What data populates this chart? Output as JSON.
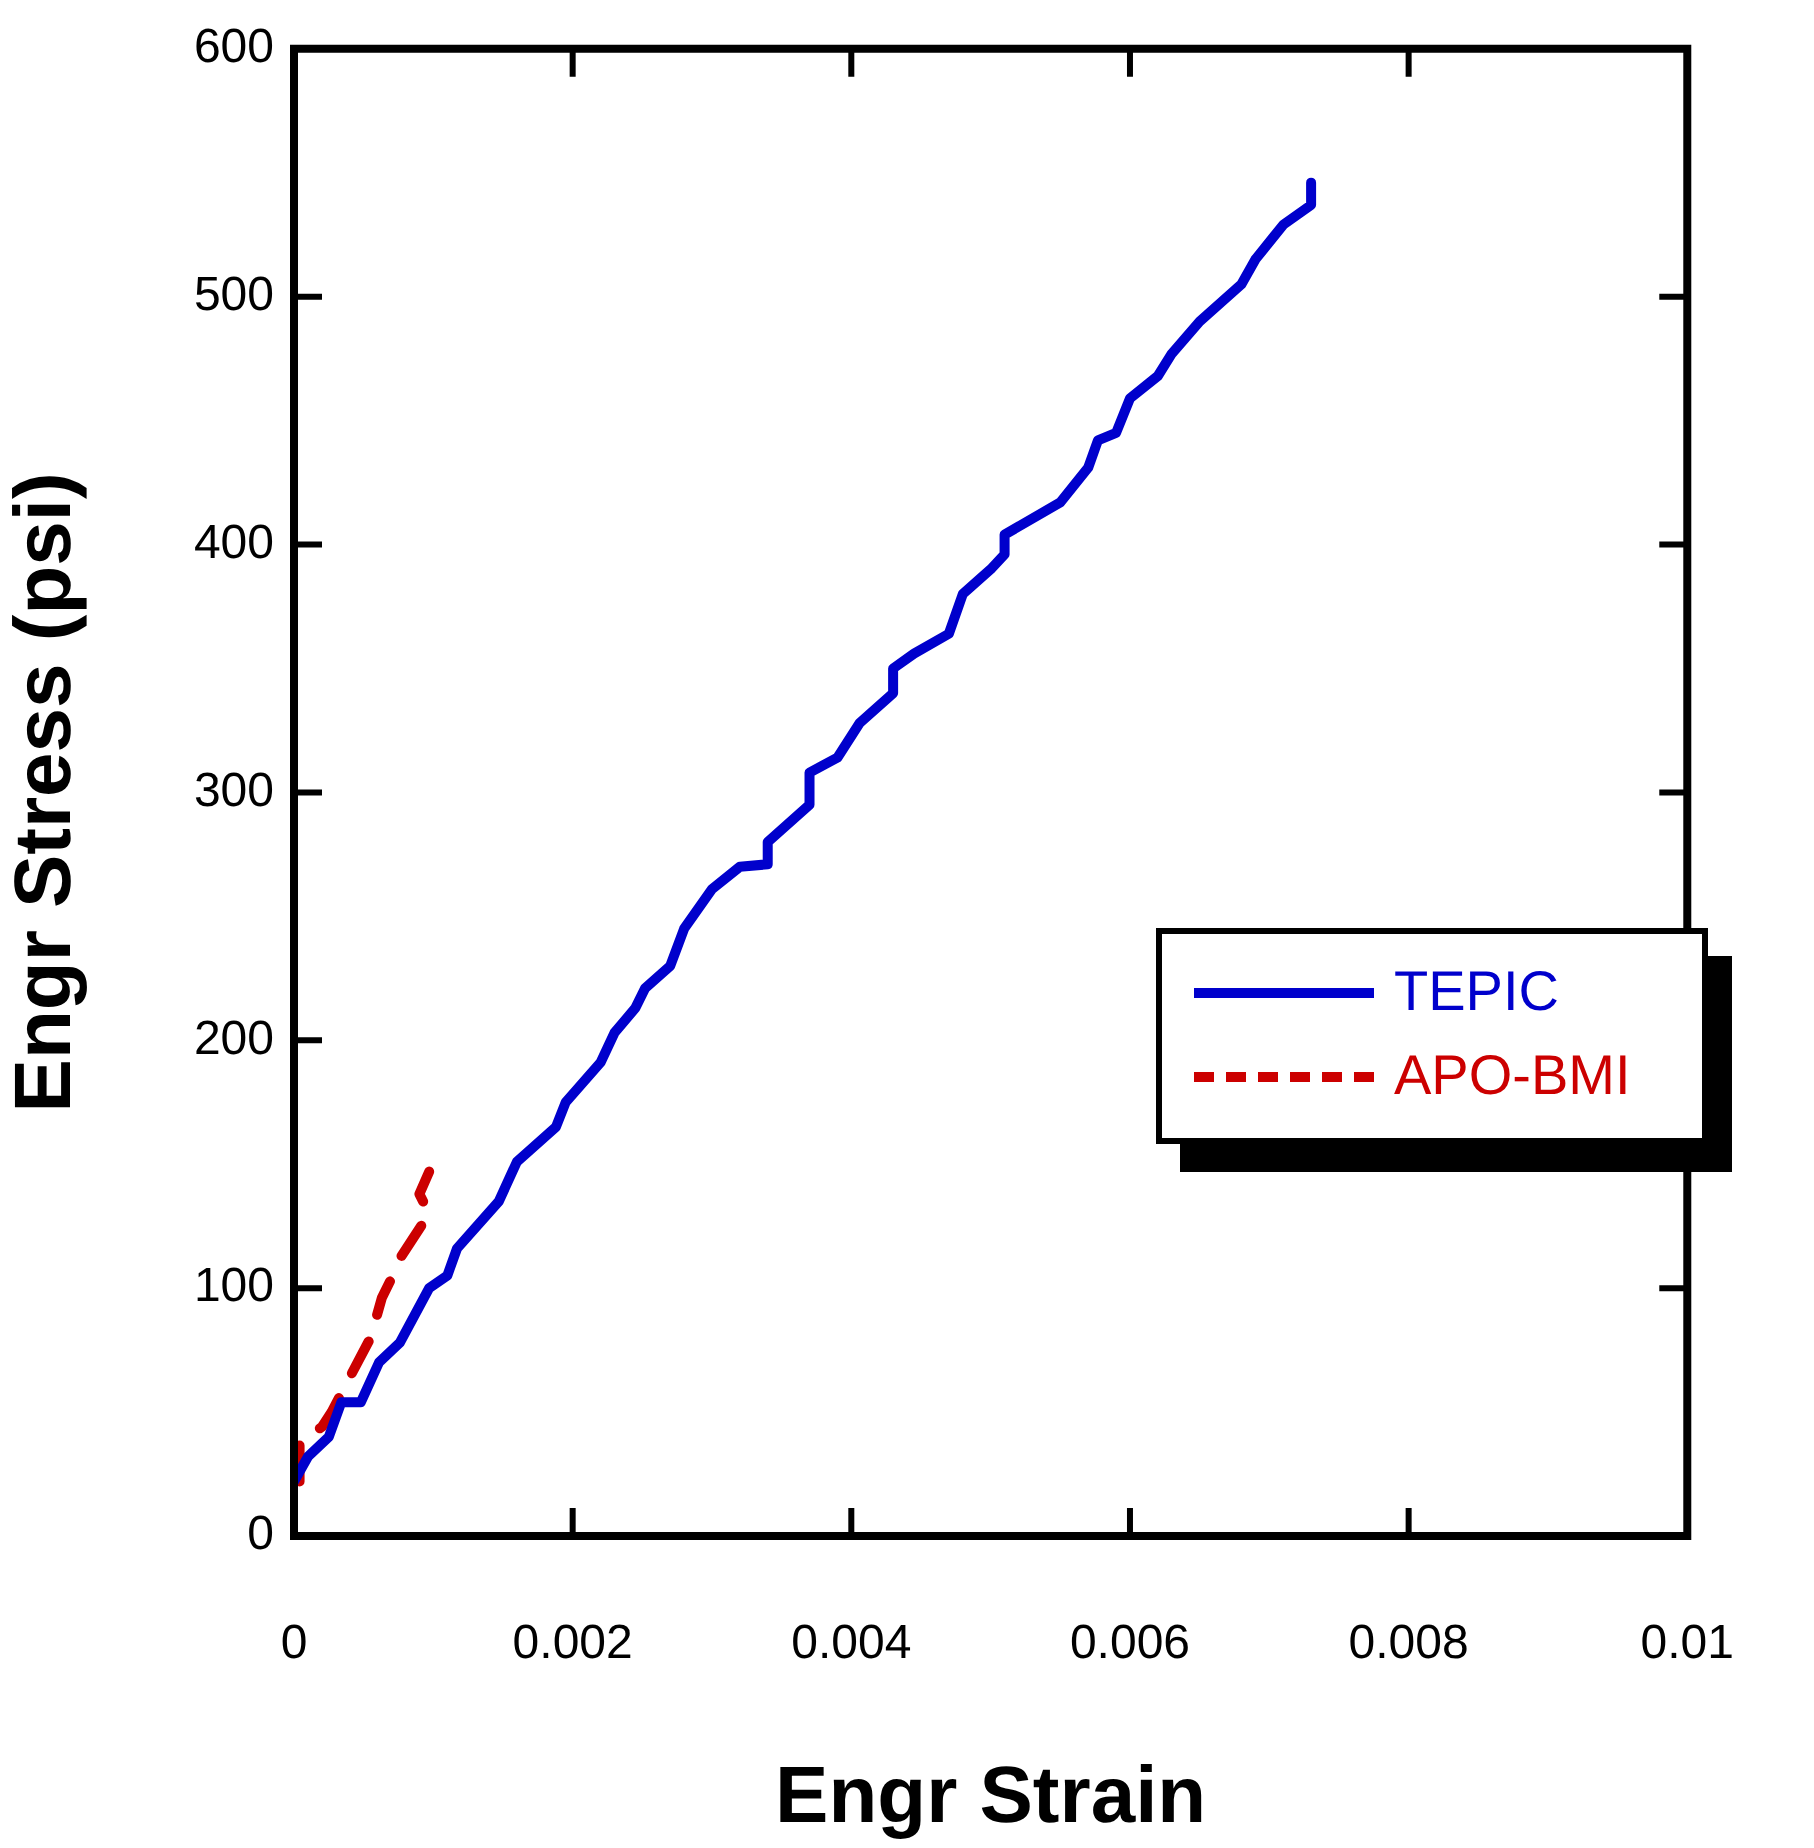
{
  "chart_data": {
    "type": "line",
    "xlabel": "Engr Strain",
    "ylabel": "Engr Stress (psi)",
    "xlim": [
      0,
      0.01
    ],
    "xticks": [
      {
        "value": 0,
        "label": "0"
      },
      {
        "value": 0.002,
        "label": "0.002"
      },
      {
        "value": 0.004,
        "label": "0.004"
      },
      {
        "value": 0.006,
        "label": "0.006"
      },
      {
        "value": 0.008,
        "label": "0.008"
      },
      {
        "value": 0.01,
        "label": "0.01"
      }
    ],
    "ylim": [
      0,
      600
    ],
    "yticks": [
      0,
      100,
      200,
      300,
      400,
      500,
      600
    ],
    "grid": false,
    "legend": "right",
    "marker": "none",
    "series": [
      {
        "name": "TEPIC",
        "color": "#0000cc",
        "line_style": "solid",
        "x": [
          0,
          0.0001,
          0.00025,
          0.00034,
          0.00048,
          0.00061,
          0.00076,
          0.00097,
          0.0011,
          0.00117,
          0.00147,
          0.0016,
          0.00188,
          0.00195,
          0.0022,
          0.0023,
          0.00245,
          0.00252,
          0.0027,
          0.0028,
          0.003,
          0.0032,
          0.0034,
          0.0034,
          0.0037,
          0.0037,
          0.0039,
          0.00406,
          0.0043,
          0.0043,
          0.00445,
          0.0047,
          0.0048,
          0.005,
          0.0051,
          0.0051,
          0.0055,
          0.0057,
          0.00577,
          0.0059,
          0.006,
          0.0062,
          0.0063,
          0.0065,
          0.0068,
          0.0069,
          0.0071,
          0.0073,
          0.0073
        ],
        "values": [
          22,
          32,
          40,
          54,
          54,
          70,
          78,
          100,
          105,
          116,
          135,
          151,
          165,
          175,
          191,
          203,
          213,
          221,
          230,
          245,
          261,
          270,
          271,
          280,
          295,
          308,
          314,
          328,
          340,
          350,
          356,
          364,
          380,
          390,
          396,
          404,
          417,
          431,
          442,
          445,
          459,
          468,
          477,
          490,
          505,
          515,
          529,
          537,
          546
        ]
      },
      {
        "name": "APO-BMI",
        "color": "#cc0000",
        "line_style": "dashed",
        "x": [
          4e-05,
          4e-05,
          0.0002,
          0.00027,
          0.0004,
          0.00055,
          0.00063,
          0.0007,
          0.00076,
          0.00097,
          0.0009,
          0.00097
        ],
        "values": [
          22,
          38,
          44,
          50,
          64,
          80,
          96,
          104,
          112,
          130,
          138,
          147
        ]
      }
    ]
  }
}
